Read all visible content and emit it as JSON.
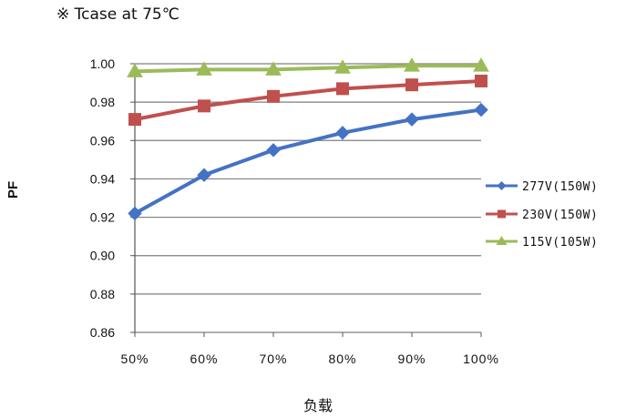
{
  "note": "※ Tcase at 75℃",
  "chart_data": {
    "type": "line",
    "title": "",
    "xlabel": "负载",
    "ylabel": "PF",
    "categories": [
      "50%",
      "60%",
      "70%",
      "80%",
      "90%",
      "100%"
    ],
    "ylim": [
      0.86,
      1.0
    ],
    "yticks": [
      "0.86",
      "0.88",
      "0.90",
      "0.92",
      "0.94",
      "0.96",
      "0.98",
      "1.00"
    ],
    "grid": true,
    "legend_position": "right",
    "series": [
      {
        "name": "277V(150W)",
        "values": [
          0.922,
          0.942,
          0.955,
          0.964,
          0.971,
          0.976
        ],
        "color": "#4472C4",
        "marker": "diamond"
      },
      {
        "name": "230V(150W)",
        "values": [
          0.971,
          0.978,
          0.983,
          0.987,
          0.989,
          0.991
        ],
        "color": "#C0504D",
        "marker": "square"
      },
      {
        "name": "115V(105W)",
        "values": [
          0.996,
          0.997,
          0.997,
          0.998,
          0.999,
          0.999
        ],
        "color": "#9BBB59",
        "marker": "triangle"
      }
    ]
  }
}
